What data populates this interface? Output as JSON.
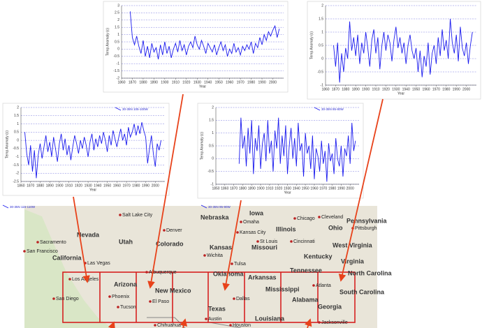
{
  "chart_data": [
    {
      "type": "line",
      "xlabel": "Year",
      "ylabel": "Temp Anomaly (c)",
      "xlim": [
        1860,
        2010
      ],
      "xticks": [
        1860,
        1870,
        1880,
        1890,
        1900,
        1910,
        1920,
        1930,
        1940,
        1950,
        1960,
        1970,
        1980,
        1990,
        2000
      ],
      "ylim": [
        -2,
        3
      ],
      "yticks": [
        -2,
        -1.5,
        -1,
        -0.5,
        0,
        0.5,
        1,
        1.5,
        2,
        2.5,
        3
      ],
      "grid": true,
      "x": [
        1868,
        1870,
        1872,
        1874,
        1876,
        1878,
        1880,
        1882,
        1884,
        1886,
        1888,
        1890,
        1892,
        1894,
        1896,
        1898,
        1900,
        1902,
        1904,
        1906,
        1908,
        1910,
        1912,
        1914,
        1916,
        1918,
        1920,
        1922,
        1924,
        1926,
        1928,
        1930,
        1932,
        1934,
        1936,
        1938,
        1940,
        1942,
        1944,
        1946,
        1948,
        1950,
        1952,
        1954,
        1956,
        1958,
        1960,
        1962,
        1964,
        1966,
        1968,
        1970,
        1972,
        1974,
        1976,
        1978,
        1980,
        1982,
        1984,
        1986,
        1988,
        1990,
        1992,
        1994,
        1996,
        1998,
        2000,
        2002,
        2004,
        2006
      ],
      "series": [
        {
          "name": "30-35N 115-110W",
          "color": "#1a1aee",
          "values": [
            2.6,
            0.8,
            0.3,
            0.9,
            0.2,
            -0.3,
            0.6,
            -0.5,
            0.2,
            -0.6,
            0.4,
            -0.2,
            0.1,
            -0.7,
            0.3,
            -0.4,
            0.5,
            -0.3,
            0.2,
            -0.6,
            0.0,
            0.4,
            -0.2,
            0.6,
            -0.1,
            0.3,
            -0.4,
            0.2,
            0.5,
            0.1,
            0.9,
            0.3,
            0.0,
            0.6,
            0.2,
            -0.3,
            0.4,
            0.1,
            -0.2,
            0.3,
            -0.4,
            0.1,
            0.5,
            -0.1,
            0.3,
            -0.5,
            0.0,
            -0.3,
            0.4,
            -0.2,
            0.1,
            -0.4,
            0.2,
            -0.1,
            0.3,
            0.0,
            0.5,
            -0.3,
            0.4,
            0.1,
            0.8,
            0.3,
            1.0,
            0.6,
            1.2,
            0.9,
            1.3,
            1.6,
            0.8,
            1.4
          ]
        }
      ]
    },
    {
      "type": "line",
      "xlabel": "Year",
      "ylabel": "Temp Anomaly (c)",
      "xlim": [
        1860,
        2010
      ],
      "xticks": [
        1860,
        1870,
        1880,
        1890,
        1900,
        1910,
        1920,
        1930,
        1940,
        1950,
        1960,
        1970,
        1980,
        1990,
        2000
      ],
      "ylim": [
        -1,
        2
      ],
      "yticks": [
        -1,
        -0.5,
        0,
        0.5,
        1,
        1.5,
        2
      ],
      "grid": true,
      "x": [
        1868,
        1870,
        1872,
        1874,
        1876,
        1878,
        1880,
        1882,
        1884,
        1886,
        1888,
        1890,
        1892,
        1894,
        1896,
        1898,
        1900,
        1902,
        1904,
        1906,
        1908,
        1910,
        1912,
        1914,
        1916,
        1918,
        1920,
        1922,
        1924,
        1926,
        1928,
        1930,
        1932,
        1934,
        1936,
        1938,
        1940,
        1942,
        1944,
        1946,
        1948,
        1950,
        1952,
        1954,
        1956,
        1958,
        1960,
        1962,
        1964,
        1966,
        1968,
        1970,
        1972,
        1974,
        1976,
        1978,
        1980,
        1982,
        1984,
        1986,
        1988,
        1990,
        1992,
        1994,
        1996,
        1998,
        2000,
        2002,
        2004,
        2006
      ],
      "series": [
        {
          "name": "30-35N 95-90W",
          "color": "#1a1aee",
          "values": [
            0.5,
            -0.3,
            0.6,
            -0.9,
            0.2,
            -0.5,
            0.4,
            0.0,
            1.4,
            0.3,
            0.8,
            0.1,
            0.9,
            -0.2,
            0.6,
            0.2,
            1.0,
            0.4,
            -0.3,
            0.7,
            1.1,
            0.2,
            0.8,
            -0.4,
            0.5,
            1.0,
            0.3,
            0.9,
            0.6,
            -0.1,
            0.7,
            1.2,
            0.4,
            0.8,
            0.2,
            0.6,
            -0.2,
            0.5,
            0.9,
            0.3,
            0.0,
            0.4,
            -0.5,
            0.3,
            -0.7,
            0.1,
            -0.3,
            0.6,
            -0.6,
            0.2,
            0.5,
            -0.2,
            0.8,
            0.1,
            1.1,
            0.3,
            0.7,
            0.0,
            1.5,
            0.6,
            0.2,
            0.9,
            -0.1,
            1.2,
            0.4,
            0.1,
            0.6,
            -0.2,
            0.5,
            1.0
          ]
        }
      ]
    },
    {
      "type": "line",
      "xlabel": "Year",
      "ylabel": "Temp Anomaly (c)",
      "xlim": [
        1860,
        2010
      ],
      "xticks": [
        1860,
        1870,
        1880,
        1890,
        1900,
        1910,
        1920,
        1930,
        1940,
        1950,
        1960,
        1970,
        1980,
        1990,
        2000
      ],
      "ylim": [
        -2.5,
        2
      ],
      "yticks": [
        -2.5,
        -2,
        -1.5,
        -1,
        -0.5,
        0,
        0.5,
        1,
        1.5,
        2
      ],
      "grid": true,
      "x": [
        1864,
        1866,
        1868,
        1870,
        1872,
        1874,
        1876,
        1878,
        1880,
        1882,
        1884,
        1886,
        1888,
        1890,
        1892,
        1894,
        1896,
        1898,
        1900,
        1902,
        1904,
        1906,
        1908,
        1910,
        1912,
        1914,
        1916,
        1918,
        1920,
        1922,
        1924,
        1926,
        1928,
        1930,
        1932,
        1934,
        1936,
        1938,
        1940,
        1942,
        1944,
        1946,
        1948,
        1950,
        1952,
        1954,
        1956,
        1958,
        1960,
        1962,
        1964,
        1966,
        1968,
        1970,
        1972,
        1974,
        1976,
        1978,
        1980,
        1982,
        1984,
        1986,
        1988,
        1990,
        1992,
        1994,
        1996,
        1998,
        2000,
        2002,
        2004,
        2006
      ],
      "series": [
        {
          "name": "30-35N 105-100W",
          "color": "#1a1aee",
          "values": [
            0.5,
            -0.8,
            -1.5,
            -0.3,
            -1.9,
            -0.6,
            -2.3,
            -0.9,
            -0.2,
            -1.1,
            -0.4,
            0.3,
            -0.7,
            -0.1,
            -1.0,
            0.2,
            -0.5,
            -1.3,
            -0.2,
            0.4,
            -0.6,
            0.1,
            -0.9,
            -0.3,
            -1.2,
            -0.4,
            0.3,
            -0.2,
            -0.8,
            0.0,
            -0.5,
            0.2,
            -0.3,
            -1.0,
            -0.1,
            0.4,
            -0.6,
            0.1,
            -0.4,
            0.3,
            -0.2,
            0.5,
            0.0,
            -0.7,
            0.3,
            -0.3,
            0.6,
            0.1,
            -0.4,
            0.2,
            0.7,
            0.0,
            0.4,
            -0.3,
            0.8,
            0.2,
            0.5,
            1.0,
            0.3,
            0.9,
            0.4,
            1.1,
            0.6,
            0.2,
            -1.4,
            -0.5,
            0.3,
            -0.8,
            -1.6,
            -0.2,
            -0.6,
            0.0
          ]
        }
      ]
    },
    {
      "type": "line",
      "xlabel": "Year",
      "ylabel": "Temp Anomaly (c)",
      "xlim": [
        1850,
        2010
      ],
      "xticks": [
        1850,
        1860,
        1870,
        1880,
        1890,
        1900,
        1910,
        1920,
        1930,
        1940,
        1950,
        1960,
        1970,
        1980,
        1990,
        2000
      ],
      "ylim": [
        -1,
        2
      ],
      "yticks": [
        -1,
        -0.5,
        0,
        0.5,
        1,
        1.5,
        2
      ],
      "grid": true,
      "x": [
        1876,
        1878,
        1880,
        1882,
        1884,
        1886,
        1888,
        1890,
        1892,
        1894,
        1896,
        1898,
        1900,
        1902,
        1904,
        1906,
        1908,
        1910,
        1912,
        1914,
        1916,
        1918,
        1920,
        1922,
        1924,
        1926,
        1928,
        1930,
        1932,
        1934,
        1936,
        1938,
        1940,
        1942,
        1944,
        1946,
        1948,
        1950,
        1952,
        1954,
        1956,
        1958,
        1960,
        1962,
        1964,
        1966,
        1968,
        1970,
        1972,
        1974,
        1976,
        1978,
        1980,
        1982,
        1984,
        1986,
        1988,
        1990,
        1992,
        1994,
        1996,
        1998,
        2000,
        2002,
        2004,
        2006
      ],
      "series": [
        {
          "name": "30-35N 85-80W",
          "color": "#1a1aee",
          "values": [
            -0.2,
            1.6,
            0.4,
            0.9,
            -0.3,
            1.2,
            0.2,
            1.5,
            -0.6,
            0.8,
            0.3,
            1.3,
            -0.4,
            0.6,
            1.0,
            -0.1,
            1.5,
            0.2,
            0.7,
            -0.5,
            1.1,
            0.4,
            1.6,
            -0.2,
            0.9,
            0.1,
            1.3,
            -0.6,
            0.5,
            1.2,
            0.0,
            0.8,
            -0.3,
            1.4,
            0.3,
            0.6,
            -0.7,
            1.0,
            0.2,
            0.5,
            -0.4,
            0.9,
            -0.8,
            0.4,
            0.1,
            -0.5,
            0.7,
            -0.2,
            0.3,
            -0.9,
            0.6,
            -0.1,
            0.2,
            -0.6,
            0.8,
            0.0,
            -0.3,
            0.5,
            -0.7,
            0.4,
            0.1,
            0.9,
            -0.2,
            1.4,
            0.3,
            0.7
          ]
        }
      ]
    }
  ],
  "map": {
    "labels": [
      "Salt Lake City",
      "Nevada",
      "Sacramento",
      "San Francisco",
      "California",
      "Las Vegas",
      "Utah",
      "Denver",
      "Colorado",
      "Nebraska",
      "Iowa",
      "Omaha",
      "Kansas City",
      "Kansas",
      "Wichita",
      "Missouri",
      "St Louis",
      "Illinois",
      "Chicago",
      "Cincinnati",
      "Cleveland",
      "Ohio",
      "Pennsylvania",
      "Pittsburgh",
      "West Virginia",
      "Virginia",
      "Kentucky",
      "Tennessee",
      "North Carolina",
      "Atlanta",
      "South Carolina",
      "Georgia",
      "Alabama",
      "Mississippi",
      "Arkansas",
      "Oklahoma",
      "Tulsa",
      "Dallas",
      "Texas",
      "Austin",
      "Houston",
      "Louisiana",
      "Jacksonville",
      "Los Angeles",
      "San Diego",
      "Arizona",
      "Phoenix",
      "Tucson",
      "New Mexico",
      "Albuquerque",
      "El Paso",
      "Chihuahua"
    ]
  }
}
